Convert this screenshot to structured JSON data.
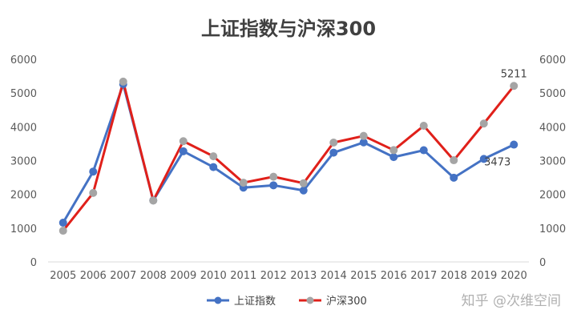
{
  "chart_data": {
    "type": "line",
    "title": "上证指数与沪深300",
    "categories": [
      "2005",
      "2006",
      "2007",
      "2008",
      "2009",
      "2010",
      "2011",
      "2012",
      "2013",
      "2014",
      "2015",
      "2016",
      "2017",
      "2018",
      "2019",
      "2020"
    ],
    "ylim": [
      0,
      6000
    ],
    "y_ticks": [
      "0",
      "1000",
      "2000",
      "3000",
      "4000",
      "5000",
      "6000"
    ],
    "y2_ticks": [
      "0",
      "1000",
      "2000",
      "3000",
      "4000",
      "5000",
      "6000"
    ],
    "series": [
      {
        "name": "上证指数",
        "color": "#4472c4",
        "values": [
          1161,
          2675,
          5262,
          1821,
          3277,
          2808,
          2199,
          2269,
          2116,
          3235,
          3539,
          3104,
          3307,
          2494,
          3050,
          3473
        ]
      },
      {
        "name": "沪深300",
        "color": "#e0201a",
        "marker_color": "#a5a5a5",
        "values": [
          924,
          2042,
          5338,
          1817,
          3575,
          3128,
          2346,
          2523,
          2331,
          3534,
          3731,
          3310,
          4031,
          3011,
          4097,
          5211
        ]
      }
    ],
    "data_labels": [
      {
        "series": "上证指数",
        "category": "2020",
        "text": "3473"
      },
      {
        "series": "沪深300",
        "category": "2020",
        "text": "5211"
      }
    ],
    "grid": false,
    "legend_position": "bottom"
  },
  "watermark": "知乎 @次维空间"
}
